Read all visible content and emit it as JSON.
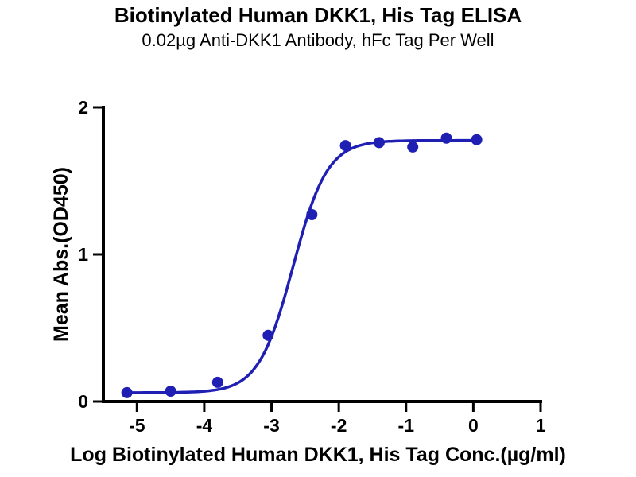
{
  "chart_data": {
    "type": "scatter",
    "title": "Biotinylated Human DKK1, His Tag ELISA",
    "subtitle": "0.02µg Anti-DKK1 Antibody, hFc Tag Per Well",
    "xlabel": "Log Biotinylated Human DKK1, His Tag Conc.(µg/ml)",
    "ylabel": "Mean Abs.(OD450)",
    "xlim": [
      -5.5,
      1
    ],
    "ylim": [
      0,
      2
    ],
    "xticks": [
      -5,
      -4,
      -3,
      -2,
      -1,
      0,
      1
    ],
    "yticks": [
      0,
      1,
      2
    ],
    "x": [
      -5.15,
      -4.5,
      -3.8,
      -3.05,
      -2.4,
      -1.9,
      -1.4,
      -0.9,
      -0.4,
      0.05
    ],
    "y": [
      0.06,
      0.07,
      0.13,
      0.45,
      1.27,
      1.74,
      1.76,
      1.73,
      1.79,
      1.78
    ],
    "fit": {
      "model": "4PL",
      "bottom": 0.06,
      "top": 1.775,
      "logEC50": -2.68,
      "hill": 1.7
    },
    "curve_range": [
      -5.18,
      0.08
    ],
    "grid": false,
    "legend": "none",
    "colors": {
      "series": "#1f1fb4",
      "axis": "#000000",
      "background": "#ffffff"
    }
  }
}
